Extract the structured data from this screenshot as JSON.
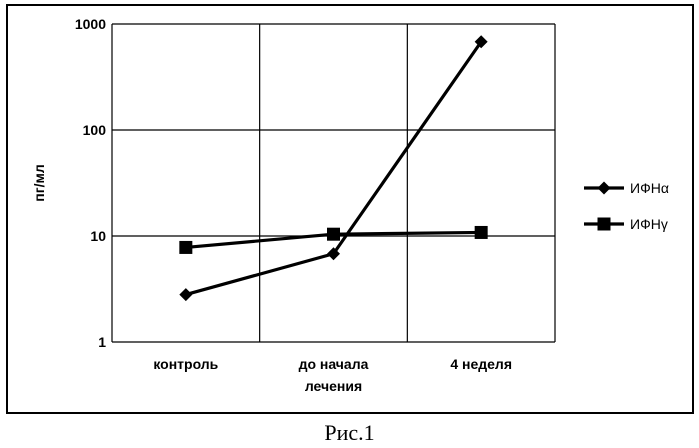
{
  "caption": "Рис.1",
  "chart_data": {
    "type": "line",
    "ylabel": "пг/мл",
    "xlabel": "",
    "yscale": "log",
    "ylim": [
      1,
      1000
    ],
    "yticks": [
      1,
      10,
      100,
      1000
    ],
    "ytick_labels": [
      "1",
      "10",
      "100",
      "1000"
    ],
    "categories": [
      [
        "контроль"
      ],
      [
        "до  начала",
        "лечения"
      ],
      [
        "4 неделя"
      ]
    ],
    "grid": true,
    "legend_position": "right",
    "series": [
      {
        "name": "ИФНα",
        "marker": "diamond",
        "color": "#000000",
        "values": [
          2.8,
          6.8,
          680
        ]
      },
      {
        "name": "ИФНγ",
        "marker": "square",
        "color": "#000000",
        "values": [
          7.8,
          10.4,
          10.8
        ]
      }
    ]
  }
}
